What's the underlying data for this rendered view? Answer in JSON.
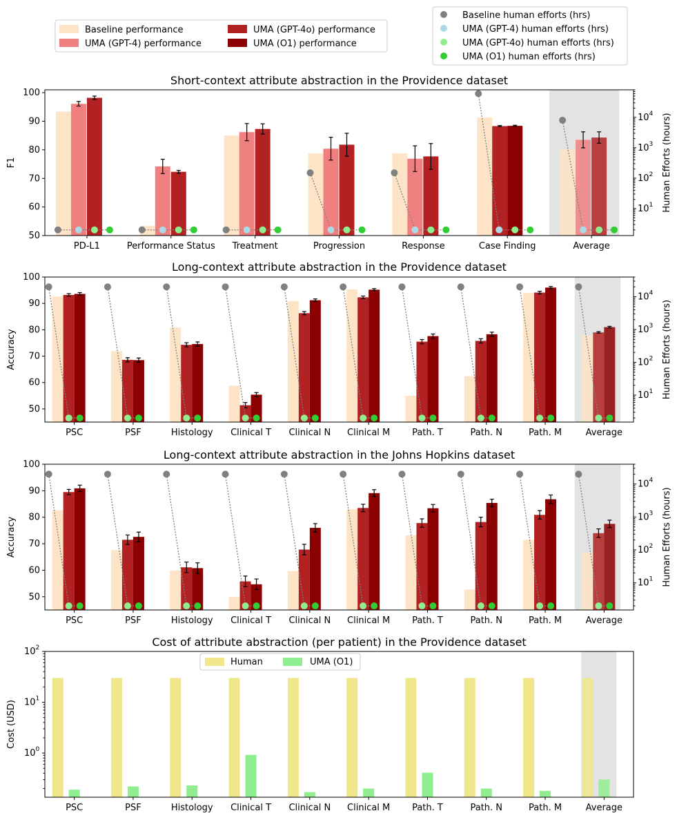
{
  "colors": {
    "baseline": "#fde4c6",
    "gpt4": "#f08080",
    "gpt4o": "#b22222",
    "o1": "#8b0000",
    "human_baseline": "#808080",
    "human_gpt4": "#add8e6",
    "human_gpt4o": "#90ee90",
    "human_o1": "#32cd32",
    "cost_human": "#f0e68c",
    "cost_uma": "#90ee90",
    "average_shade": "#e3e3e3"
  },
  "legends": {
    "performance": [
      "Baseline performance",
      "UMA (GPT-4) performance",
      "UMA (GPT-4o) performance",
      "UMA (O1) performance"
    ],
    "efforts": [
      "Baseline human efforts (hrs)",
      "UMA (GPT-4) human efforts (hrs)",
      "UMA (GPT-4o) human efforts (hrs)",
      "UMA (O1) human efforts (hrs)"
    ]
  },
  "chart_data": [
    {
      "type": "bar",
      "title": "Short-context attribute abstraction in the Providence dataset",
      "ylabel": "F1",
      "y2label": "Human Efforts (hours)",
      "ylim": [
        50,
        101
      ],
      "yticks": [
        50,
        60,
        70,
        80,
        90,
        100
      ],
      "y2log": [
        1.3,
        80000
      ],
      "y2ticks": [
        {
          "v": 10,
          "label": "10",
          "sup": "1"
        },
        {
          "v": 100,
          "label": "10",
          "sup": "2"
        },
        {
          "v": 1000,
          "label": "10",
          "sup": "3"
        },
        {
          "v": 10000,
          "label": "10",
          "sup": "4"
        }
      ],
      "categories": [
        "PD-L1",
        "Performance Status",
        "Treatment",
        "Progression",
        "Response",
        "Case Finding",
        "Average"
      ],
      "highlight_last": true,
      "series": [
        {
          "name": "Baseline performance",
          "color_key": "baseline",
          "values": [
            93.4,
            53.4,
            85.0,
            78.7,
            78.8,
            91.3,
            80.1
          ],
          "errors": [
            0,
            0,
            0,
            0,
            0,
            0,
            0
          ]
        },
        {
          "name": "UMA (GPT-4) performance",
          "color_key": "gpt4",
          "values": [
            96.1,
            74.2,
            86.2,
            80.4,
            76.9,
            null,
            83.5
          ],
          "errors": [
            0.8,
            2.5,
            3.0,
            4.0,
            4.5,
            0,
            2.8
          ]
        },
        {
          "name": "UMA (GPT-4o) performance",
          "color_key": "gpt4o",
          "values": [
            98.2,
            72.3,
            87.3,
            81.8,
            77.7,
            88.3,
            84.3
          ],
          "errors": [
            0.6,
            0.5,
            1.8,
            4.0,
            4.5,
            0.2,
            2.0
          ]
        },
        {
          "name": "UMA (O1) performance",
          "color_key": "o1",
          "values": [
            null,
            null,
            null,
            null,
            null,
            88.4,
            null
          ],
          "errors": [
            0,
            0,
            0,
            0,
            0,
            0.2,
            0
          ]
        }
      ],
      "efforts_hrs": {
        "baseline": [
          2,
          2,
          2,
          150,
          150,
          60000,
          8000
        ],
        "gpt4": [
          2,
          2,
          2,
          2,
          2,
          2,
          2
        ],
        "gpt4o": [
          2,
          2,
          2,
          2,
          2,
          2,
          2
        ],
        "o1": [
          null,
          null,
          null,
          null,
          null,
          null,
          null
        ]
      }
    },
    {
      "type": "bar",
      "title": "Long-context attribute abstraction in the Providence dataset",
      "ylabel": "Accuracy",
      "y2label": "Human Efforts (hours)",
      "ylim": [
        45,
        100
      ],
      "yticks": [
        50,
        60,
        70,
        80,
        90,
        100
      ],
      "y2log": [
        1.5,
        40000
      ],
      "y2ticks": [
        {
          "v": 10,
          "label": "10",
          "sup": "1"
        },
        {
          "v": 100,
          "label": "10",
          "sup": "2"
        },
        {
          "v": 1000,
          "label": "10",
          "sup": "3"
        },
        {
          "v": 10000,
          "label": "10",
          "sup": "4"
        }
      ],
      "categories": [
        "PSC",
        "PSF",
        "Histology",
        "Clinical T",
        "Clinical N",
        "Clinical M",
        "Path. T",
        "Path. N",
        "Path. M",
        "Average"
      ],
      "highlight_last": true,
      "series": [
        {
          "name": "Baseline performance",
          "color_key": "baseline",
          "values": [
            92.6,
            71.9,
            80.9,
            58.8,
            90.9,
            95.3,
            55.0,
            62.4,
            94.0,
            77.9
          ],
          "errors": [
            0,
            0,
            0,
            0,
            0,
            0,
            0,
            0,
            0,
            0
          ]
        },
        {
          "name": "UMA (GPT-4o) performance",
          "color_key": "gpt4o",
          "values": [
            93.2,
            68.6,
            74.3,
            51.4,
            86.3,
            92.3,
            75.5,
            75.8,
            94.1,
            79.0
          ],
          "errors": [
            0.5,
            0.8,
            0.8,
            1.0,
            0.6,
            0.5,
            0.8,
            0.8,
            0.5,
            0.3
          ]
        },
        {
          "name": "UMA (O1) performance",
          "color_key": "o1",
          "values": [
            93.6,
            68.5,
            74.6,
            55.4,
            91.2,
            95.2,
            77.6,
            78.3,
            96.0,
            81.0
          ],
          "errors": [
            0.5,
            0.8,
            0.8,
            0.8,
            0.5,
            0.4,
            0.8,
            0.8,
            0.4,
            0.3
          ]
        }
      ],
      "efforts_hrs": {
        "baseline": [
          20000,
          20000,
          20000,
          20000,
          20000,
          20000,
          20000,
          20000,
          20000,
          20000
        ],
        "gpt4o": [
          2,
          2,
          2,
          2,
          2,
          2,
          2,
          2,
          2,
          2
        ],
        "o1": [
          2,
          2,
          2,
          2,
          2,
          2,
          2,
          2,
          2,
          2
        ]
      }
    },
    {
      "type": "bar",
      "title": "Long-context attribute abstraction in the Johns Hopkins dataset",
      "ylabel": "Accuracy",
      "y2label": "Human Efforts (hours)",
      "ylim": [
        45,
        100
      ],
      "yticks": [
        50,
        60,
        70,
        80,
        90,
        100
      ],
      "y2log": [
        1.5,
        40000
      ],
      "y2ticks": [
        {
          "v": 10,
          "label": "10",
          "sup": "1"
        },
        {
          "v": 100,
          "label": "10",
          "sup": "2"
        },
        {
          "v": 1000,
          "label": "10",
          "sup": "3"
        },
        {
          "v": 10000,
          "label": "10",
          "sup": "4"
        }
      ],
      "categories": [
        "PSC",
        "PSF",
        "Histology",
        "Clinical T",
        "Clinical N",
        "Clinical M",
        "Path. T",
        "Path. N",
        "Path. M",
        "Average"
      ],
      "highlight_last": true,
      "series": [
        {
          "name": "Baseline performance",
          "color_key": "baseline",
          "values": [
            82.7,
            67.6,
            59.9,
            49.9,
            59.7,
            83.0,
            73.2,
            52.7,
            71.5,
            66.7
          ],
          "errors": [
            0,
            0,
            0,
            0,
            0,
            0,
            0,
            0,
            0,
            0
          ]
        },
        {
          "name": "UMA (GPT-4o) performance",
          "color_key": "gpt4o",
          "values": [
            89.5,
            71.5,
            61.1,
            55.8,
            67.8,
            83.5,
            77.8,
            78.2,
            80.9,
            74.0
          ],
          "errors": [
            1.0,
            1.8,
            2.0,
            2.0,
            2.0,
            1.4,
            1.6,
            1.8,
            1.6,
            1.6
          ]
        },
        {
          "name": "UMA (O1) performance",
          "color_key": "o1",
          "values": [
            90.9,
            72.6,
            60.8,
            54.7,
            76.0,
            89.1,
            83.4,
            85.4,
            86.8,
            77.5
          ],
          "errors": [
            1.2,
            1.8,
            2.0,
            2.0,
            1.6,
            1.3,
            1.4,
            1.4,
            1.6,
            1.4
          ]
        }
      ],
      "efforts_hrs": {
        "baseline": [
          20000,
          20000,
          20000,
          20000,
          20000,
          20000,
          20000,
          20000,
          20000,
          20000
        ],
        "gpt4o": [
          2,
          2,
          2,
          2,
          2,
          2,
          2,
          2,
          2,
          2
        ],
        "o1": [
          2,
          2,
          2,
          2,
          2,
          2,
          2,
          2,
          2,
          2
        ]
      }
    },
    {
      "type": "bar",
      "title": "Cost of attribute abstraction (per patient) in the Providence dataset",
      "ylabel": "Cost (USD)",
      "ylog": [
        0.135,
        100
      ],
      "yticks_log": [
        {
          "v": 1,
          "label": "10",
          "sup": "0"
        },
        {
          "v": 10,
          "label": "10",
          "sup": "1"
        },
        {
          "v": 100,
          "label": "10",
          "sup": "2"
        }
      ],
      "categories": [
        "PSC",
        "PSF",
        "Histology",
        "Clinical T",
        "Clinical N",
        "Clinical M",
        "Path. T",
        "Path. N",
        "Path. M",
        "Average"
      ],
      "highlight_last": true,
      "legend": [
        "Human",
        "UMA (O1)"
      ],
      "series": [
        {
          "name": "Human",
          "color_key": "cost_human",
          "values": [
            30,
            30,
            30,
            30,
            30,
            30,
            30,
            30,
            30,
            30
          ]
        },
        {
          "name": "UMA (O1)",
          "color_key": "cost_uma",
          "values": [
            0.19,
            0.22,
            0.23,
            0.92,
            0.17,
            0.2,
            0.41,
            0.2,
            0.18,
            0.3
          ]
        }
      ]
    }
  ]
}
